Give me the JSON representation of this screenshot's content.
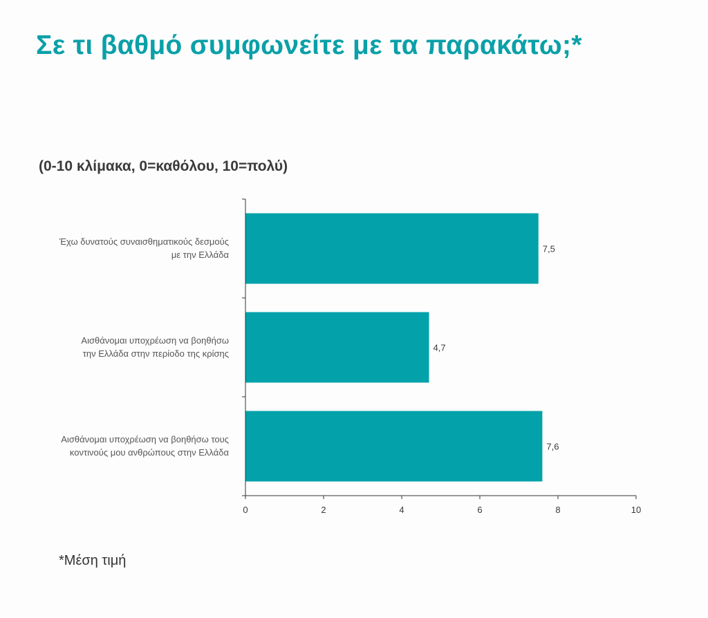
{
  "title": "Σε τι βαθμό συμφωνείτε με τα παρακάτω;*",
  "subtitle": "(0-10 κλίμακα, 0=καθόλου, 10=πολύ)",
  "footnote": "*Μέση τιμή",
  "colors": {
    "accent": "#0aa0a8",
    "bar": "#03a2aa",
    "text": "#3a3a3a",
    "axis": "#333333"
  },
  "chart_data": {
    "type": "bar",
    "orientation": "horizontal",
    "categories": [
      [
        "Έχω δυνατούς συναισθηματικούς δεσμούς",
        "με την Ελλάδα"
      ],
      [
        "Αισθάνομαι υποχρέωση να βοηθήσω",
        "την Ελλάδα στην περίοδο της κρίσης"
      ],
      [
        "Αισθάνομαι υποχρέωση να βοηθήσω τους",
        "κοντινούς μου ανθρώπους στην Ελλάδα"
      ]
    ],
    "values": [
      7.5,
      4.7,
      7.6
    ],
    "value_labels": [
      "7,5",
      "4,7",
      "7,6"
    ],
    "xlim": [
      0,
      10
    ],
    "x_ticks": [
      0,
      2,
      4,
      6,
      8,
      10
    ],
    "x_tick_labels": [
      "0",
      "2",
      "4",
      "6",
      "8",
      "10"
    ],
    "grid": false,
    "legend": "none"
  }
}
